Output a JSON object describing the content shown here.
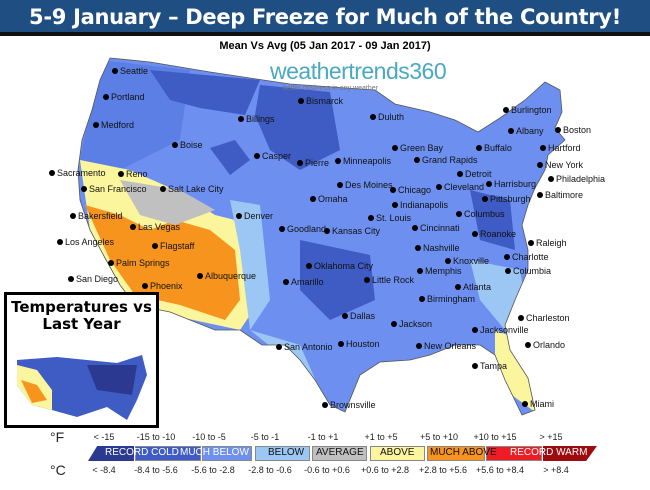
{
  "header": {
    "title": "5-9 January – Deep Freeze for Much of the Country!"
  },
  "map": {
    "subtitle": "Mean Vs Avg (05 Jan 2017 - 09 Jan 2017)",
    "logo": "weathertrends360",
    "logo_tagline": "better business in any weather",
    "cities": [
      "Seattle",
      "Portland",
      "Medford",
      "Boise",
      "Billings",
      "Bismarck",
      "Duluth",
      "Green Bay",
      "Burlington",
      "Albany",
      "Boston",
      "Hartford",
      "Buffalo",
      "Reno",
      "Sacramento",
      "San Francisco",
      "Casper",
      "Pierre",
      "Minneapolis",
      "Grand Rapids",
      "Detroit",
      "New York",
      "Harrisburg",
      "Philadelphia",
      "Salt Lake City",
      "Des Moines",
      "Chicago",
      "Cleveland",
      "Pittsburgh",
      "Baltimore",
      "Omaha",
      "Indianapolis",
      "Columbus",
      "Denver",
      "Bakersfield",
      "Las Vegas",
      "Goodland",
      "Kansas City",
      "St. Louis",
      "Cincinnati",
      "Roanoke",
      "Raleigh",
      "Los Angeles",
      "Flagstaff",
      "Nashville",
      "Knoxville",
      "Charlotte",
      "Palm Springs",
      "Albuquerque",
      "Amarillo",
      "Oklahoma City",
      "Little Rock",
      "Memphis",
      "Columbia",
      "Atlanta",
      "Birmingham",
      "San Diego",
      "Phoenix",
      "Charleston",
      "Dallas",
      "Jackson",
      "Jacksonville",
      "San Antonio",
      "Houston",
      "New Orleans",
      "Orlando",
      "Tampa",
      "Miami",
      "Brownsville"
    ]
  },
  "inset": {
    "title": "Temperatures vs Last Year"
  },
  "legend": {
    "f_unit": "°F",
    "c_unit": "°C",
    "f_ranges": [
      "< -15",
      "-15 to -10",
      "-10 to -5",
      "-5 to -1",
      "-1 to +1",
      "+1 to +5",
      "+5 to +10",
      "+10 to +15",
      "> +15"
    ],
    "c_ranges": [
      "< -8.4",
      "-8.4 to -5.6",
      "-5.6 to -2.8",
      "-2.8 to -0.6",
      "-0.6 to +0.6",
      "+0.6 to +2.8",
      "+2.8 to +5.6",
      "+5.6 to +8.4",
      "> +8.4"
    ],
    "categories": [
      "RECORD COLD",
      "MUCH BELOW",
      "BELOW",
      "AVERAGE",
      "ABOVE",
      "MUCH ABOVE",
      "RECORD WARM"
    ],
    "colors": [
      "#2b3990",
      "#3f5bc4",
      "#6d8ff0",
      "#9cc7f5",
      "#c0c0c0",
      "#fbf59d",
      "#f7941d",
      "#ee1c25",
      "#9e0b0f"
    ]
  }
}
